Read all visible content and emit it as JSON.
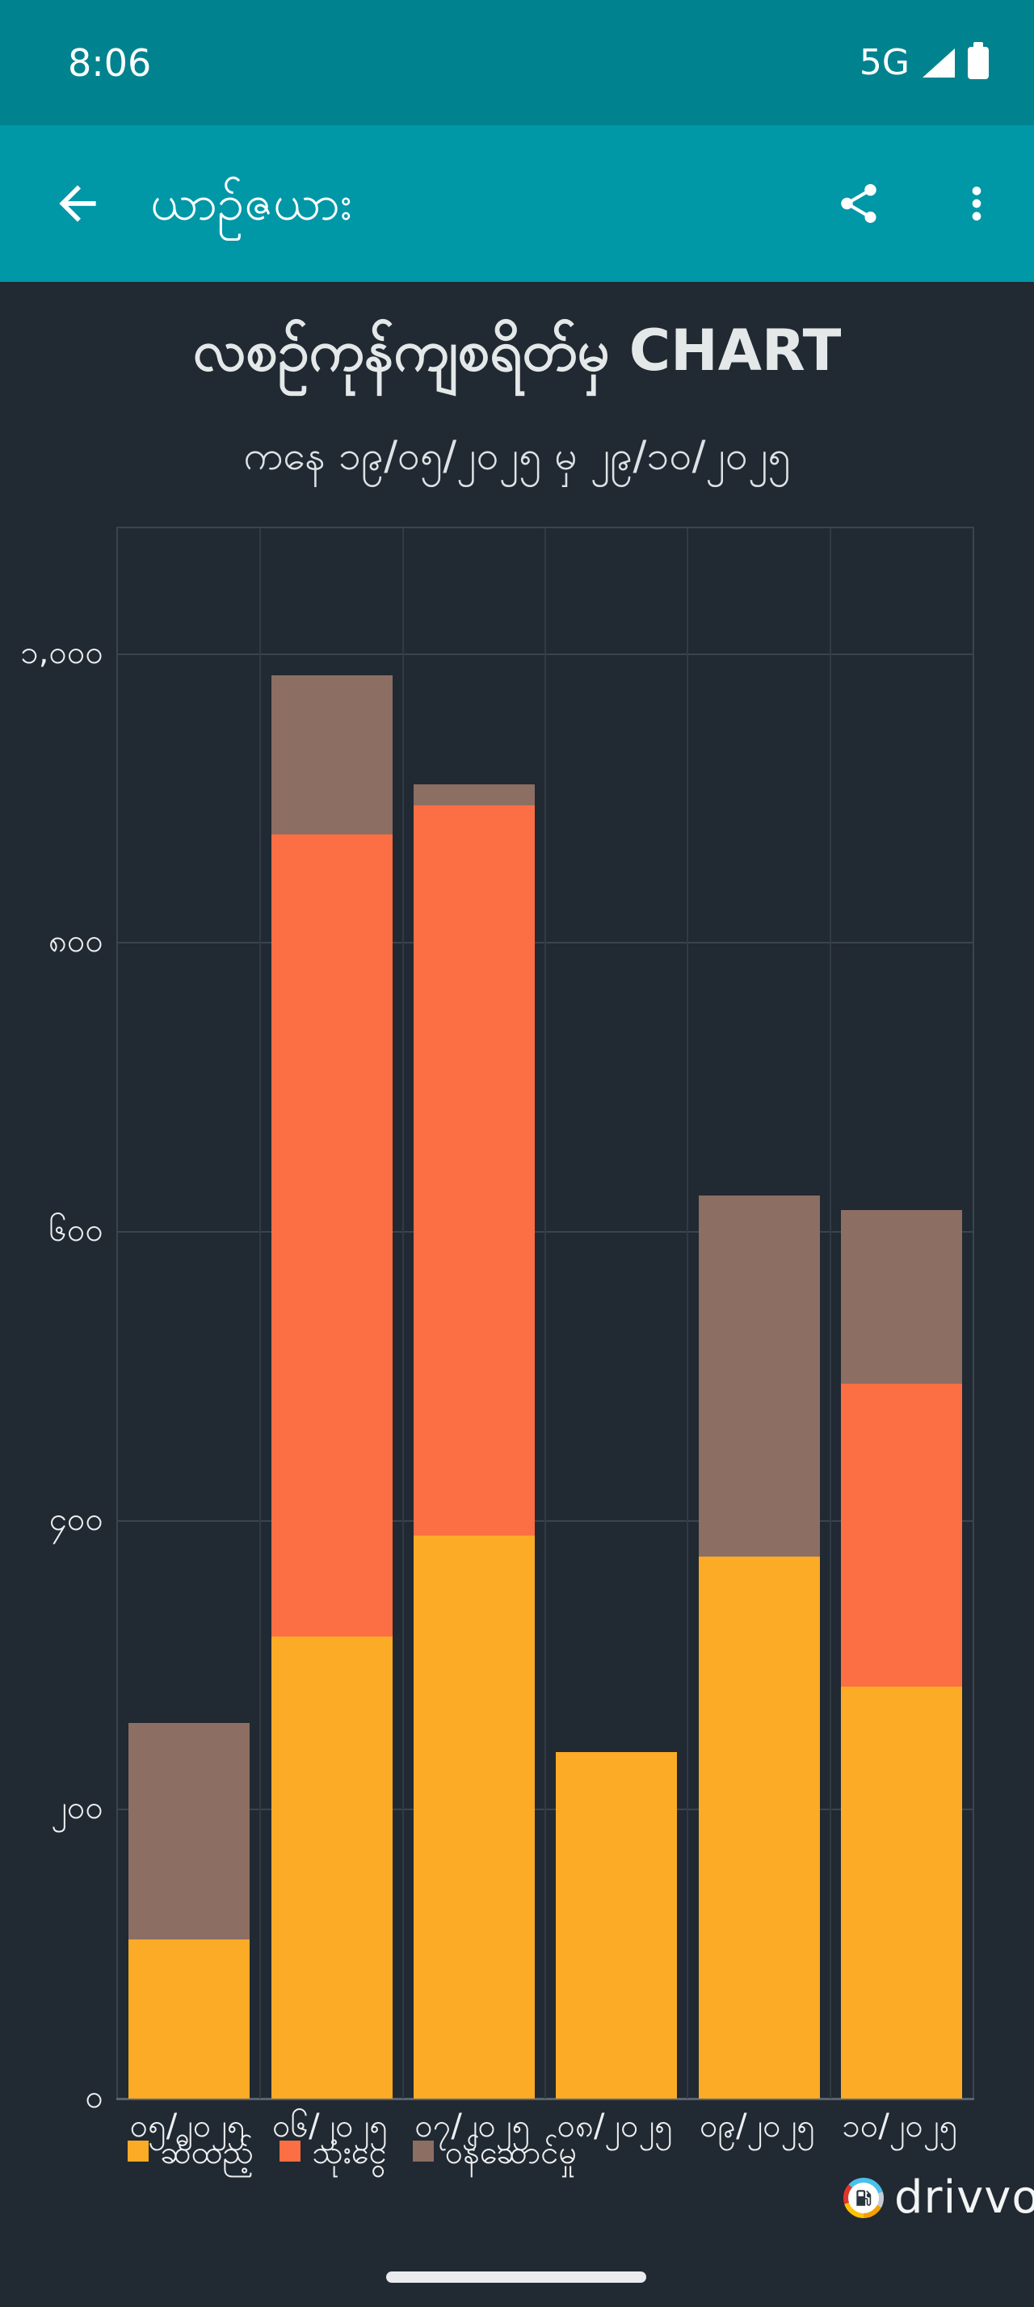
{
  "status_bar": {
    "time": "8:06",
    "network": "5G"
  },
  "app_bar": {
    "title": "ယာဉ်ဇယား"
  },
  "chart_header": {
    "title": "လစဉ်ကုန်ကျစရိတ်မှ CHART",
    "subtitle": "ကနေ ၁၉/၀၅/၂၀၂၅ မှ ၂၉/၁၀/၂၀၂၅"
  },
  "chart_data": {
    "type": "bar",
    "stacked": true,
    "grid": true,
    "legend_position": "bottom-left",
    "ylim": [
      0,
      1087
    ],
    "categories": [
      "၀၅/၂၀၂၅",
      "၀၆/၂၀၂၅",
      "၀၇/၂၀၂၅",
      "၀၈/၂၀၂၅",
      "၀၉/၂၀၂၅",
      "၁၀/၂၀၂၅"
    ],
    "series": [
      {
        "name": "ဆီထည့်",
        "color": "#FBAB26",
        "values": [
          110,
          320,
          390,
          240,
          375,
          285
        ]
      },
      {
        "name": "သုံးငွေ",
        "color": "#FC6E43",
        "values": [
          0,
          555,
          505,
          0,
          0,
          210
        ]
      },
      {
        "name": "ဝန်ဆောင်မှု",
        "color": "#8D6E63",
        "values": [
          150,
          110,
          15,
          0,
          250,
          120
        ]
      }
    ],
    "y_ticks": [
      {
        "label": "၀",
        "value": 0
      },
      {
        "label": "၂၀၀",
        "value": 200
      },
      {
        "label": "၄၀၀",
        "value": 400
      },
      {
        "label": "၆၀၀",
        "value": 600
      },
      {
        "label": "၈၀၀",
        "value": 800
      },
      {
        "label": "၁,၀၀၀",
        "value": 1000
      }
    ]
  },
  "branding": {
    "logo_text": "drivvo"
  },
  "colors": {
    "status_bar": "#00838F",
    "app_bar": "#0097A7",
    "background": "#212932",
    "fuel": "#FBAB26",
    "expense": "#FC6E43",
    "service": "#8D6E63",
    "gridline": "#3A444E",
    "text_light": "#EDEFF0"
  }
}
